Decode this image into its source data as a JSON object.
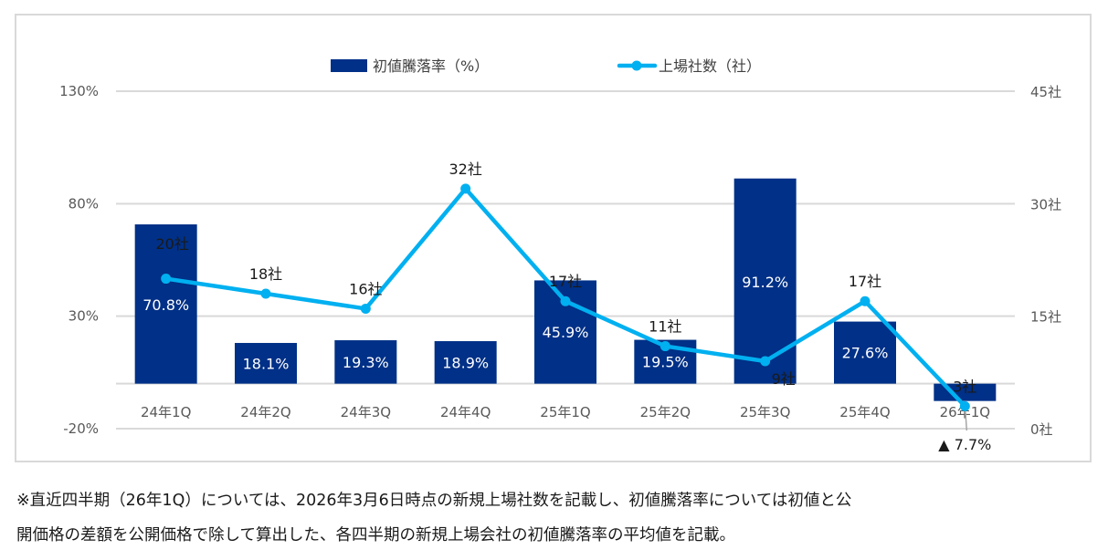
{
  "chart_data": {
    "type": "bar+line",
    "title": "",
    "categories": [
      "24年1Q",
      "24年2Q",
      "24年3Q",
      "24年4Q",
      "25年1Q",
      "25年2Q",
      "25年3Q",
      "25年4Q",
      "26年1Q"
    ],
    "series": [
      {
        "name": "初値騰落率（%）",
        "type": "bar",
        "axis": "left",
        "color": "#003087",
        "values": [
          70.8,
          18.1,
          19.3,
          18.9,
          45.9,
          19.5,
          91.2,
          27.6,
          -7.7
        ],
        "labels": [
          "70.8%",
          "18.1%",
          "19.3%",
          "18.9%",
          "45.9%",
          "19.5%",
          "91.2%",
          "27.6%",
          "▲ 7.7%"
        ]
      },
      {
        "name": "上場社数（社）",
        "type": "line",
        "axis": "right",
        "color": "#00b0f0",
        "values": [
          20,
          18,
          16,
          32,
          17,
          11,
          9,
          17,
          3
        ],
        "labels": [
          "20社",
          "18社",
          "16社",
          "32社",
          "17社",
          "11社",
          "9社",
          "17社",
          "3社"
        ]
      }
    ],
    "left_axis": {
      "ylim": [
        -20,
        130
      ],
      "ticks": [
        -20,
        30,
        80,
        130
      ],
      "tick_labels": [
        "-20%",
        "30%",
        "80%",
        "130%"
      ]
    },
    "right_axis": {
      "ylim": [
        0,
        45
      ],
      "ticks": [
        0,
        15,
        30,
        45
      ],
      "tick_labels": [
        "0社",
        "15社",
        "30社",
        "45社"
      ]
    },
    "grid": true,
    "legend_position": "top-center",
    "xlabel": "",
    "ylabel": ""
  },
  "footnote": {
    "line1": "※直近四半期（26年1Q）については、2026年3月6日時点の新規上場社数を記載し、初値騰落率については初値と公",
    "line2": "開価格の差額を公開価格で除して算出した、各四半期の新規上場会社の初値騰落率の平均値を記載。"
  }
}
